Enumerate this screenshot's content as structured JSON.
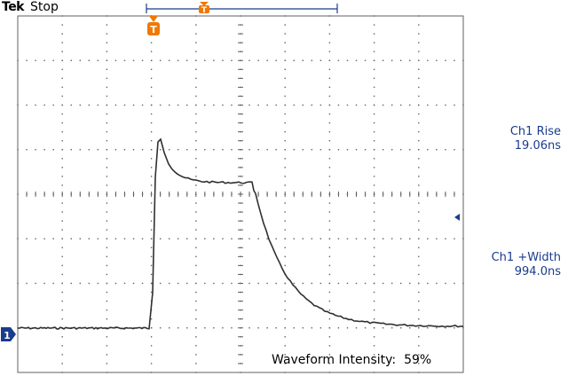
{
  "header": {
    "brand": "Tek",
    "acquisition_state": "Stop"
  },
  "trigger": {
    "marker_label": "T",
    "color": "#f07800"
  },
  "channel": {
    "marker_label": "1",
    "color": "#1a3c8c"
  },
  "measurements": [
    {
      "label": "Ch1 Rise",
      "value": "19.06ns"
    },
    {
      "label": "Ch1 +Width",
      "value": "994.0ns"
    }
  ],
  "footer": {
    "intensity_label": "Waveform Intensity:",
    "intensity_value": "59%"
  },
  "colors": {
    "grid": "#606060",
    "trace": "#303030",
    "accent_blue": "#1a3c8c"
  }
}
